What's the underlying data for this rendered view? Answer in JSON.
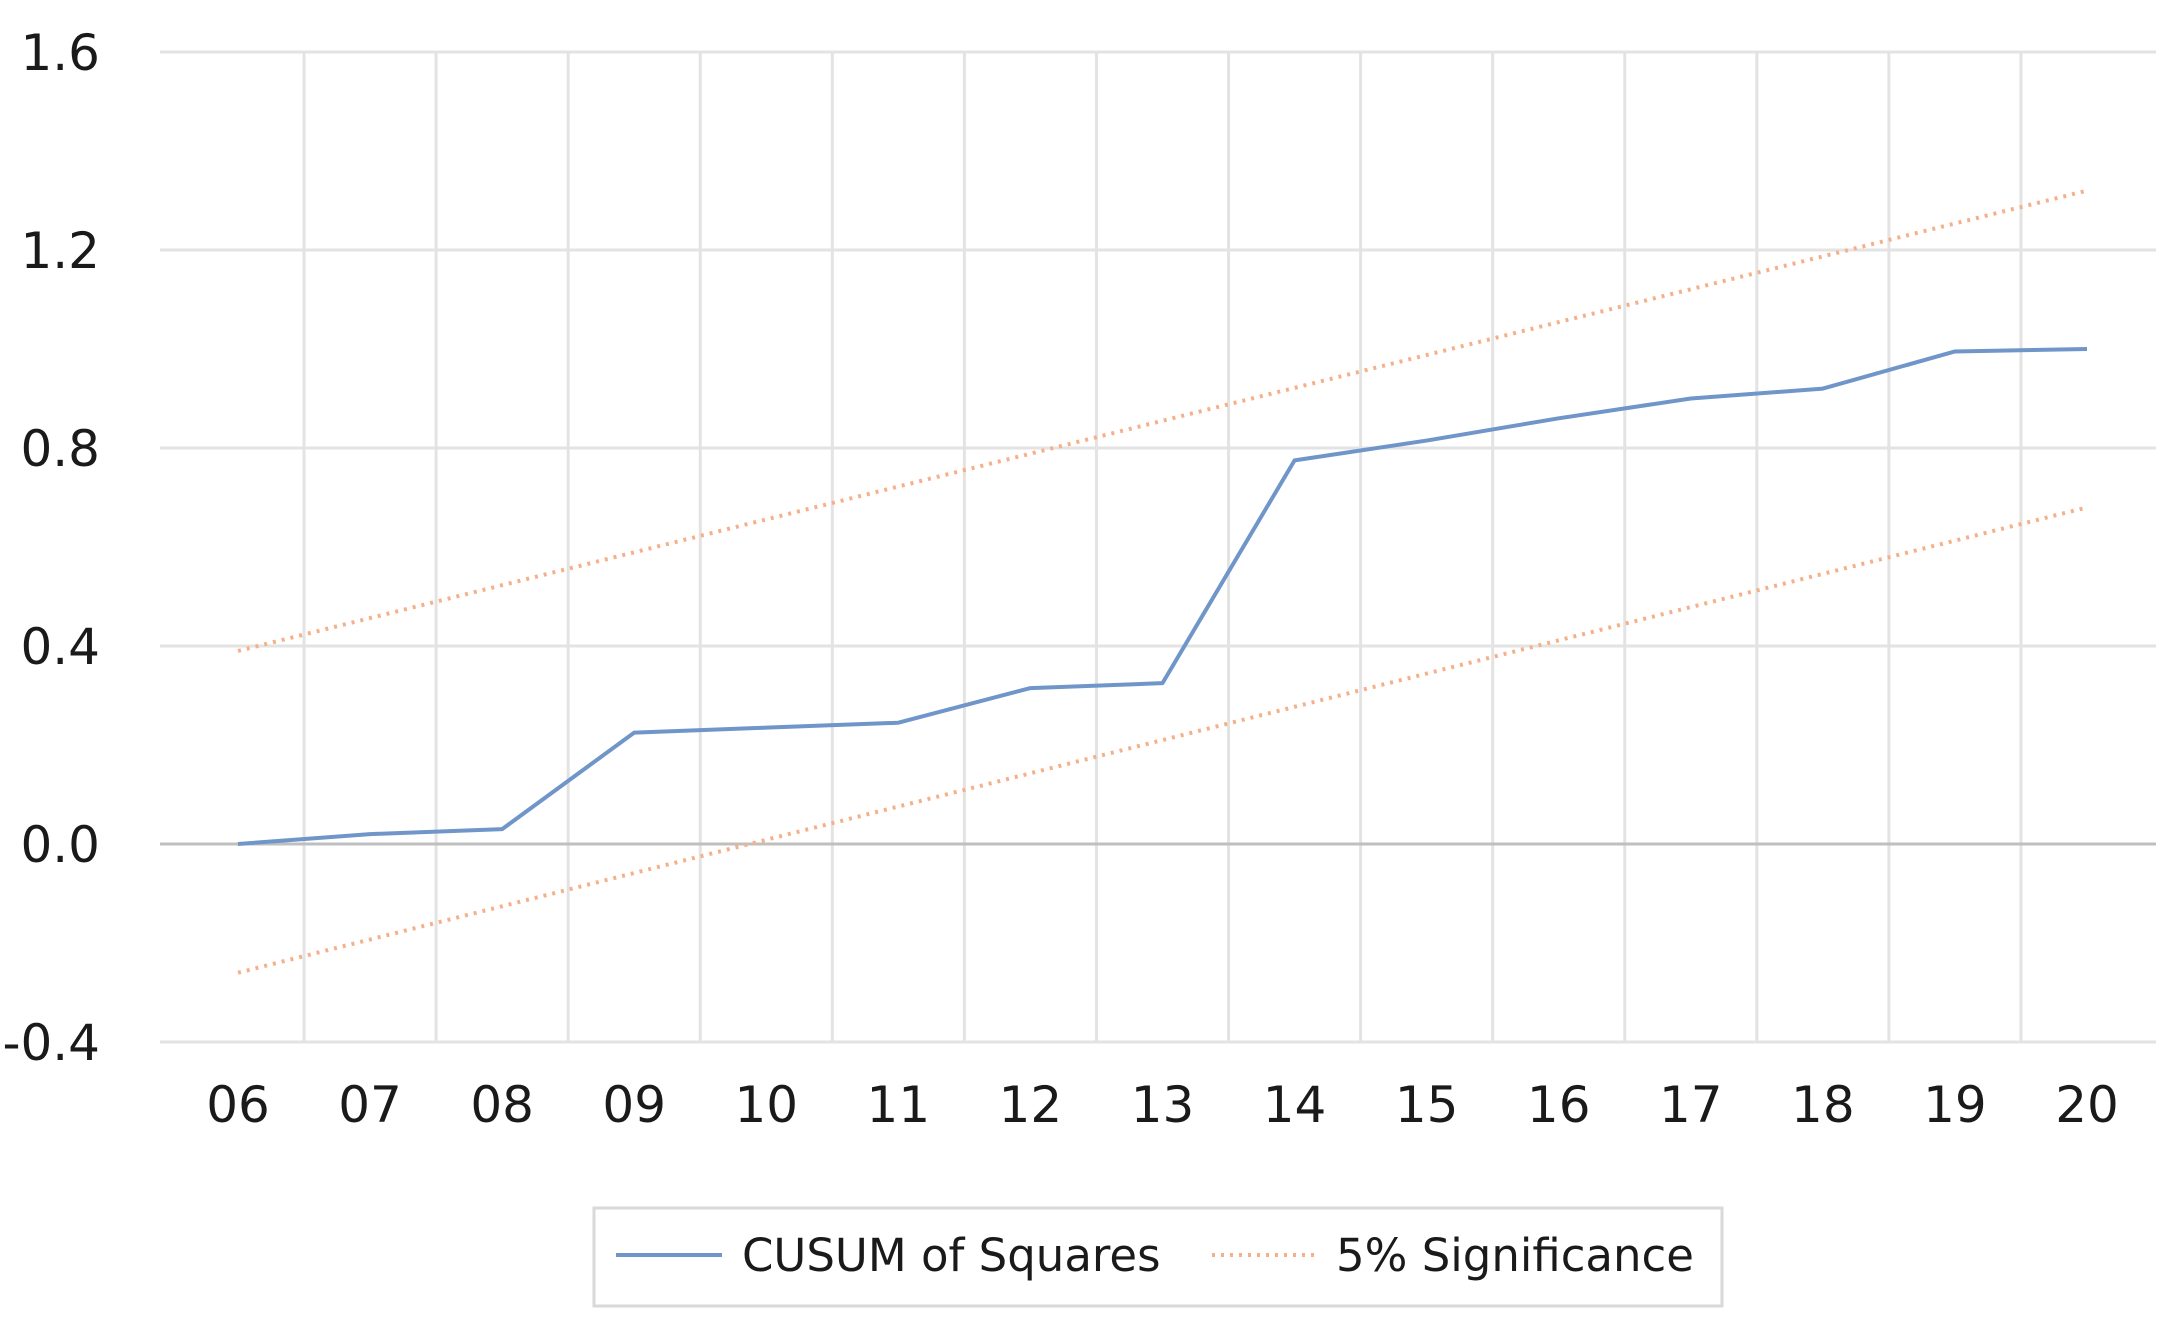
{
  "chart_data": {
    "type": "line",
    "title": "",
    "xlabel": "",
    "ylabel": "",
    "x": [
      "06",
      "07",
      "08",
      "09",
      "10",
      "11",
      "12",
      "13",
      "14",
      "15",
      "16",
      "17",
      "18",
      "19",
      "20"
    ],
    "y_ticks": [
      "1.6",
      "1.2",
      "0.8",
      "0.4",
      "0.0",
      "-0.4"
    ],
    "ylim": [
      -0.4,
      1.6
    ],
    "grid": "on",
    "legend_position": "bottom",
    "series": [
      {
        "name": "CUSUM of Squares",
        "color": "#6f95c9",
        "style": "solid",
        "points": [
          {
            "x": "06",
            "y": 0.0
          },
          {
            "x": "07",
            "y": 0.02
          },
          {
            "x": "08",
            "y": 0.03
          },
          {
            "x": "09",
            "y": 0.225
          },
          {
            "x": "10",
            "y": 0.235
          },
          {
            "x": "11",
            "y": 0.245
          },
          {
            "x": "12",
            "y": 0.315
          },
          {
            "x": "13",
            "y": 0.325
          },
          {
            "x": "14",
            "y": 0.775
          },
          {
            "x": "15",
            "y": 0.815
          },
          {
            "x": "16",
            "y": 0.86
          },
          {
            "x": "17",
            "y": 0.9
          },
          {
            "x": "18",
            "y": 0.92
          },
          {
            "x": "19",
            "y": 0.995
          },
          {
            "x": "20",
            "y": 1.0
          }
        ]
      },
      {
        "name": "5% Significance",
        "color": "#f5b08a",
        "style": "dotted",
        "bands": [
          {
            "x": [
              "06",
              "20"
            ],
            "y": [
              0.39,
              1.32
            ]
          },
          {
            "x": [
              "06",
              "20"
            ],
            "y": [
              -0.26,
              0.68
            ]
          }
        ]
      }
    ]
  }
}
